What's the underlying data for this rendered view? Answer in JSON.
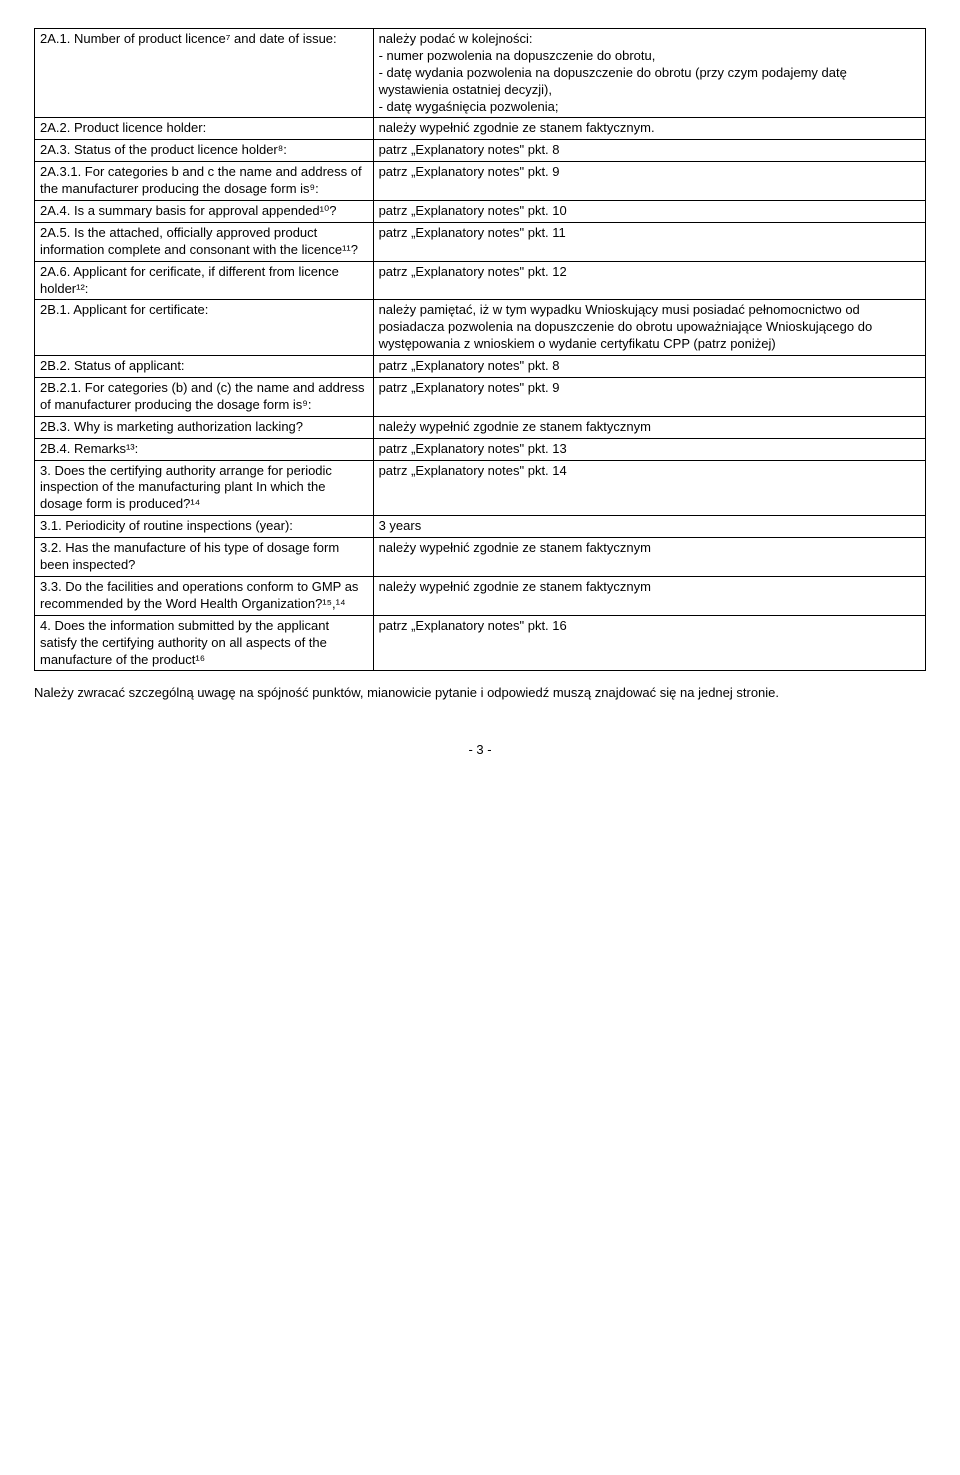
{
  "rows": [
    {
      "left": "2A.1. Number of product licence⁷ and date of issue:",
      "right": "należy podać w kolejności:\n- numer pozwolenia na dopuszczenie do obrotu,\n- datę wydania pozwolenia na dopuszczenie do obrotu (przy czym podajemy datę wystawienia ostatniej decyzji),\n- datę wygaśnięcia pozwolenia;"
    },
    {
      "left": "2A.2. Product licence holder:",
      "right": "należy wypełnić zgodnie ze stanem faktycznym."
    },
    {
      "left": "2A.3. Status of the product licence holder⁸:",
      "right": "patrz „Explanatory notes\" pkt. 8"
    },
    {
      "left": "2A.3.1. For categories b and c the name and address of the manufacturer producing the dosage form is⁹:",
      "right": "patrz „Explanatory notes\" pkt. 9"
    },
    {
      "left": "2A.4. Is a summary basis for approval appended¹⁰?",
      "right": "patrz „Explanatory notes\" pkt. 10"
    },
    {
      "left": "2A.5. Is the attached, officially approved product information complete and consonant with the licence¹¹?",
      "right": "patrz „Explanatory notes\" pkt. 11"
    },
    {
      "left": "2A.6. Applicant for cerificate, if different from licence holder¹²:",
      "right": "patrz „Explanatory notes\" pkt. 12"
    },
    {
      "left": "2B.1. Applicant for certificate:",
      "right": "należy pamiętać, iż w tym wypadku Wnioskujący musi posiadać pełnomocnictwo od posiadacza pozwolenia na dopuszczenie do obrotu upoważniające Wnioskującego do występowania z wnioskiem o wydanie certyfikatu CPP (patrz poniżej)"
    },
    {
      "left": "2B.2. Status of applicant:",
      "right": "patrz „Explanatory notes\" pkt. 8"
    },
    {
      "left": "2B.2.1. For categories (b) and (c) the name and address of manufacturer producing the dosage form is⁹:",
      "right": "patrz „Explanatory notes\" pkt. 9"
    },
    {
      "left": "2B.3. Why is marketing authorization lacking?",
      "right": "należy wypełnić zgodnie ze stanem faktycznym"
    },
    {
      "left": "2B.4. Remarks¹³:",
      "right": "patrz „Explanatory notes\" pkt. 13"
    },
    {
      "left": "3. Does the certifying authority arrange for periodic inspection of the manufacturing plant In which the dosage form is produced?¹⁴",
      "right": "patrz „Explanatory notes\" pkt. 14"
    },
    {
      "left": "3.1. Periodicity of routine inspections (year):",
      "right": "3 years"
    },
    {
      "left": "3.2. Has the manufacture of his type of dosage form been inspected?",
      "right": "należy wypełnić zgodnie ze stanem faktycznym"
    },
    {
      "left": "3.3. Do the facilities and operations conform to GMP as recommended by the Word Health Organization?¹⁵,¹⁴",
      "right": "należy wypełnić zgodnie ze stanem faktycznym"
    },
    {
      "left": "4. Does the information submitted by the applicant satisfy the certifying authority on all aspects of the manufacture of the product¹⁶",
      "right": "patrz „Explanatory notes\" pkt. 16"
    }
  ],
  "note": "Należy zwracać szczególną uwagę na spójność punktów, mianowicie pytanie i odpowiedź muszą znajdować się na jednej stronie.",
  "page": "- 3 -"
}
